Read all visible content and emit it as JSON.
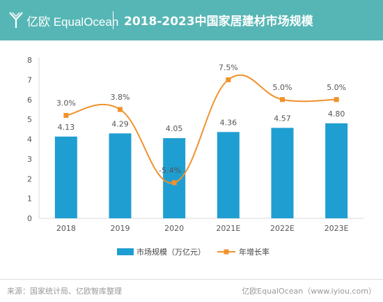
{
  "header": {
    "logo_text": "亿欧 EqualOcean",
    "title": "2018-2023中国家居建材市场规模"
  },
  "footer": {
    "source": "来源：国家统计局、亿欧智库整理",
    "brand": "亿欧EqualOcean（www.iyiou.com）"
  },
  "colors": {
    "header_bg": "#56b6b5",
    "bar": "#1f9ed1",
    "line": "#f0922b"
  },
  "chart_data": {
    "type": "bar+line",
    "categories": [
      "2018",
      "2019",
      "2020",
      "2021E",
      "2022E",
      "2023E"
    ],
    "ylim": [
      0,
      8
    ],
    "yticks": [
      0,
      1,
      2,
      3,
      4,
      5,
      6,
      7,
      8
    ],
    "grid": false,
    "legend": "bottom",
    "series": [
      {
        "name": "市场规模（万亿元）",
        "type": "bar",
        "values": [
          4.13,
          4.29,
          4.05,
          4.36,
          4.57,
          4.8
        ],
        "labels": [
          "4.13",
          "4.29",
          "4.05",
          "4.36",
          "4.57",
          "4.80"
        ]
      },
      {
        "name": "年增长率",
        "type": "line",
        "values": [
          3.0,
          3.8,
          -5.4,
          7.5,
          5.0,
          5.0
        ],
        "labels": [
          "3.0%",
          "3.8%",
          "-5.4%",
          "7.5%",
          "5.0%",
          "5.0%"
        ],
        "plotted_on_left_axis": [
          5.2,
          5.5,
          1.8,
          7.0,
          6.0,
          6.0
        ]
      }
    ]
  }
}
